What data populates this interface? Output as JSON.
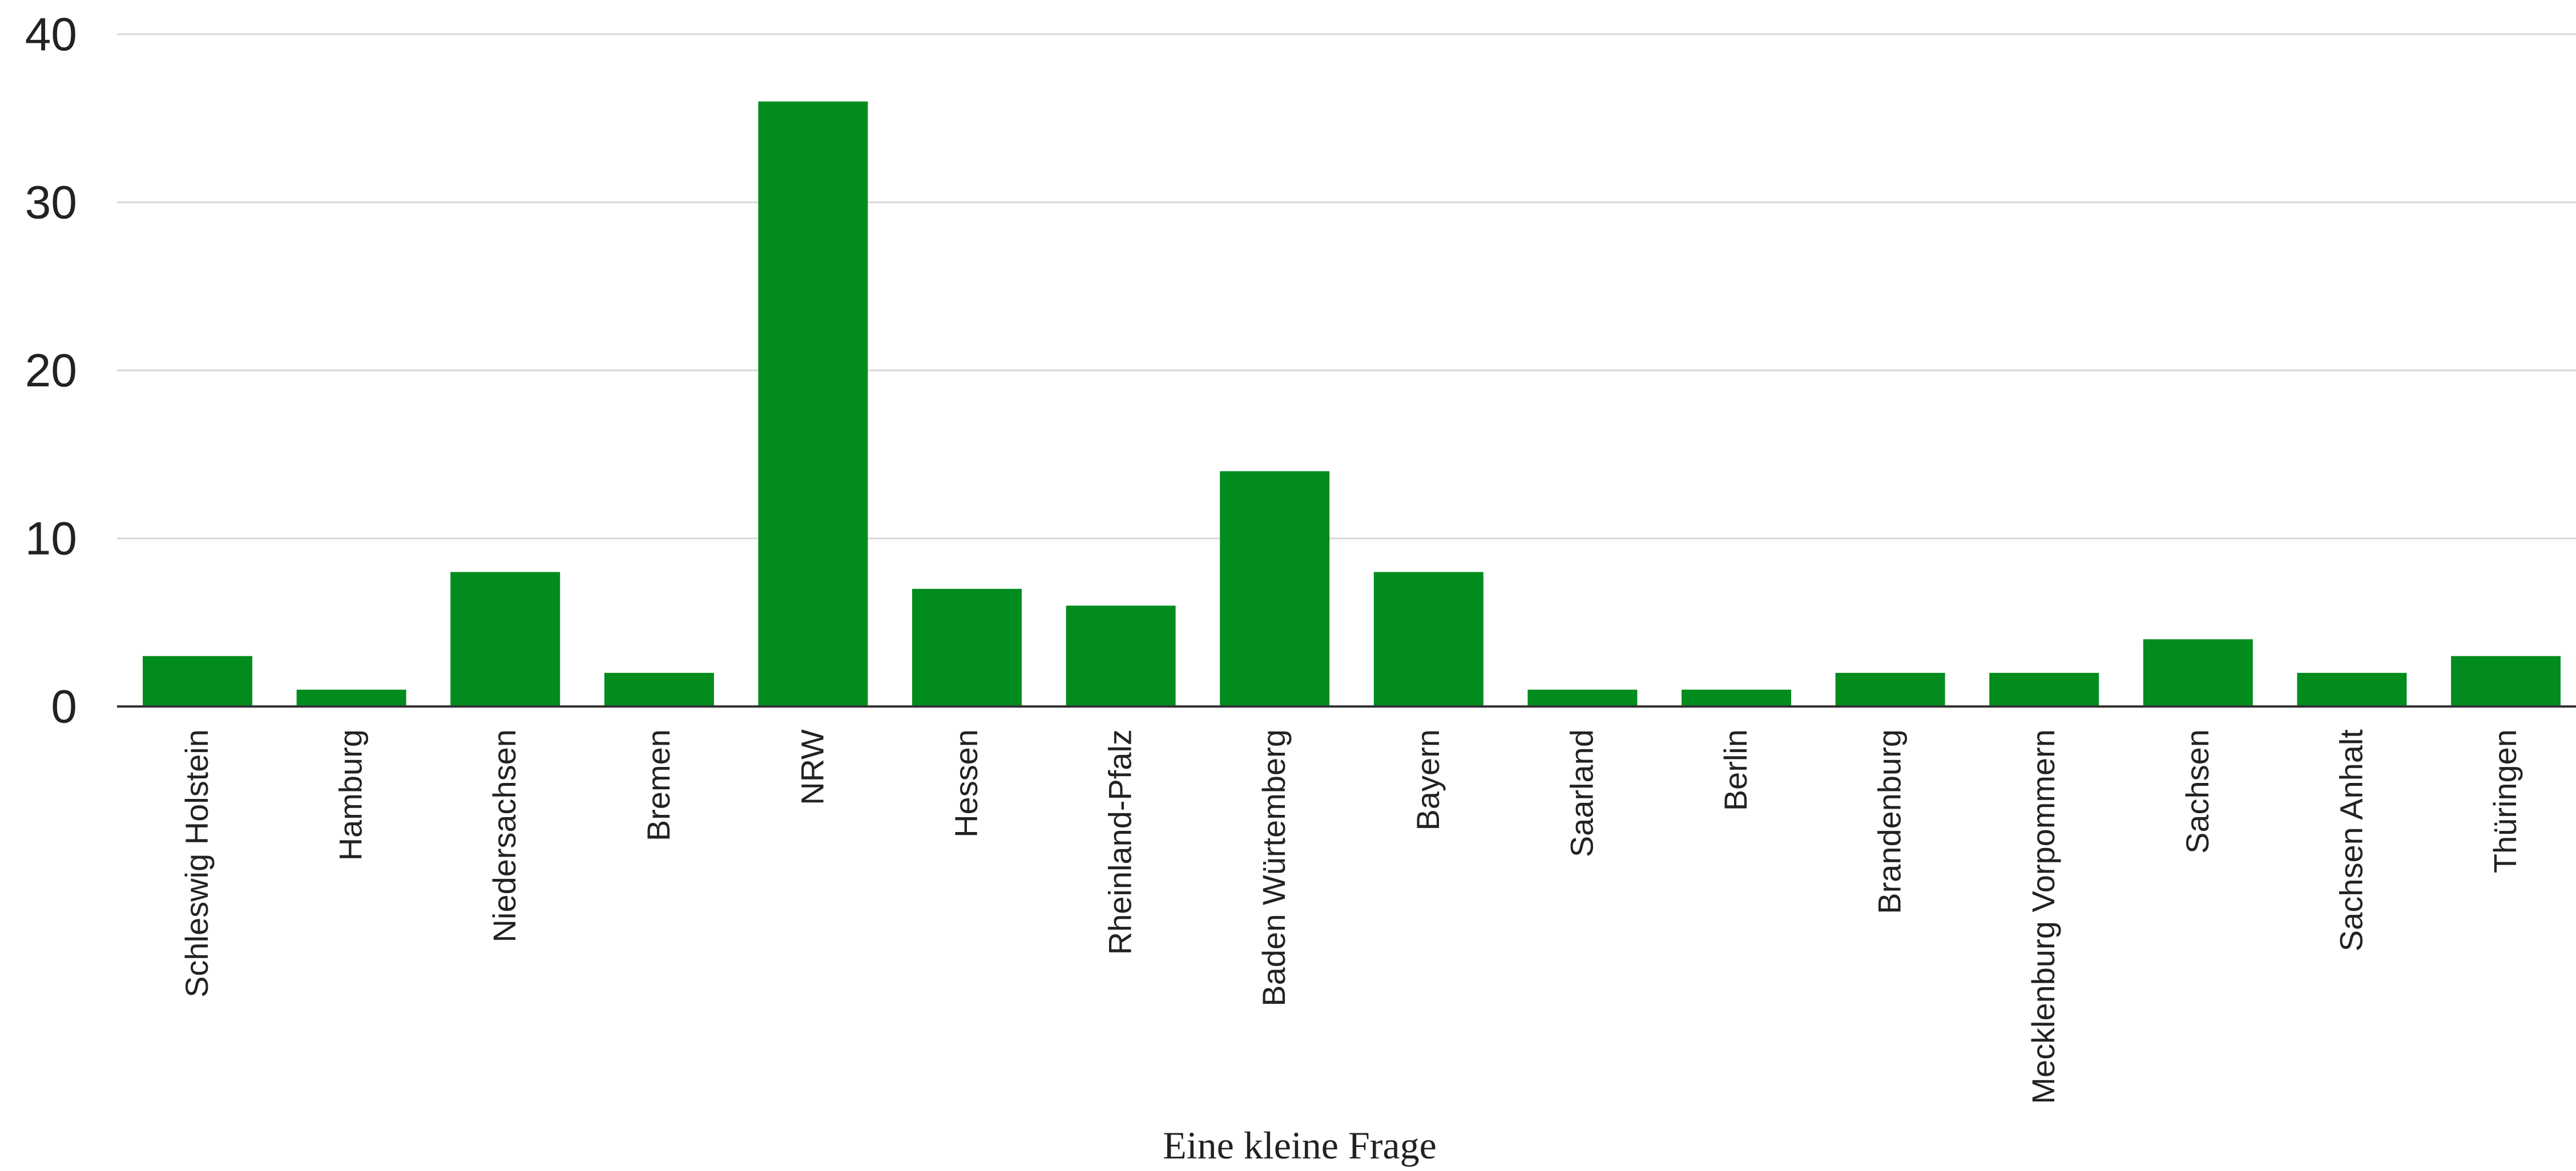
{
  "chart_data": {
    "type": "bar",
    "title": "",
    "xlabel": "Eine kleine Frage",
    "ylabel": "",
    "ylim": [
      0,
      40
    ],
    "yticks": [
      0,
      10,
      20,
      30,
      40
    ],
    "grid": true,
    "bar_color": "#038C1E",
    "categories": [
      "Schleswig Holstein",
      "Hamburg",
      "Niedersachsen",
      "Bremen",
      "NRW",
      "Hessen",
      "Rheinland-Pfalz",
      "Baden Würtemberg",
      "Bayern",
      "Saarland",
      "Berlin",
      "Brandenburg",
      "Mecklenburg Vorpommern",
      "Sachsen",
      "Sachsen Anhalt",
      "Thüringen"
    ],
    "values": [
      3,
      1,
      8,
      2,
      36,
      7,
      6,
      14,
      8,
      1,
      1,
      2,
      2,
      4,
      2,
      3
    ]
  }
}
